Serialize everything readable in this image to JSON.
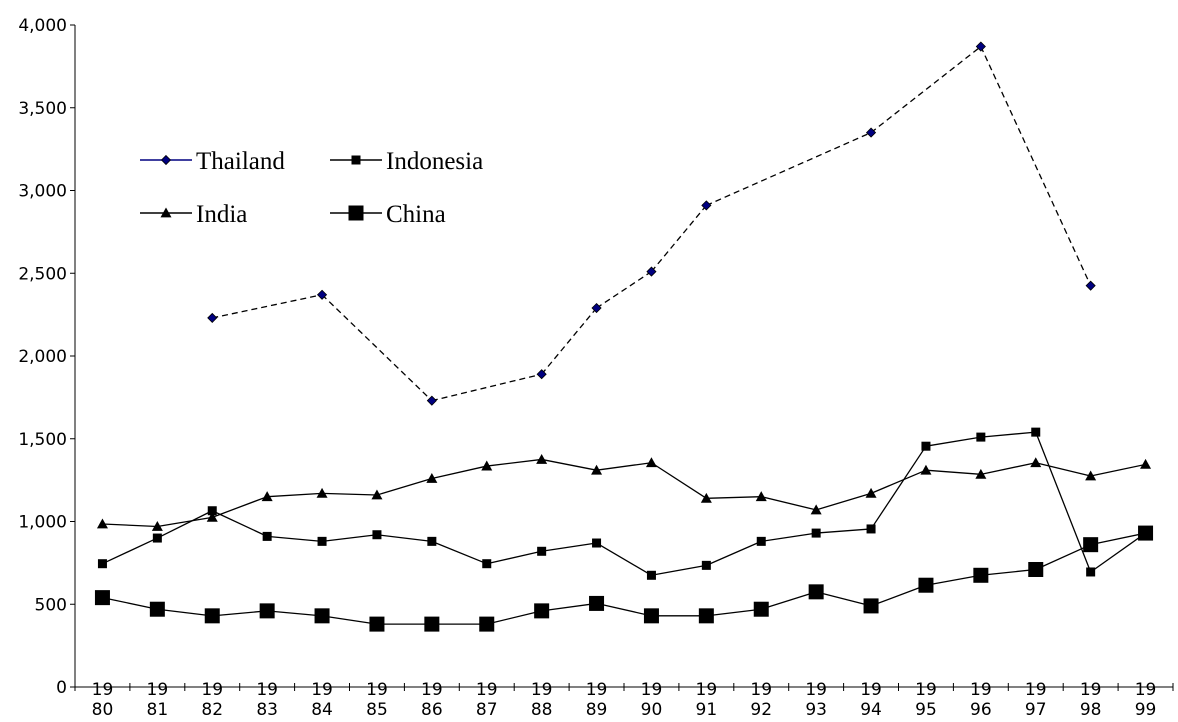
{
  "chart_data": {
    "type": "line",
    "title": "",
    "xlabel": "",
    "ylabel": "",
    "categories": [
      "19\n80",
      "19\n81",
      "19\n82",
      "19\n83",
      "19\n84",
      "19\n85",
      "19\n86",
      "19\n87",
      "19\n88",
      "19\n89",
      "19\n90",
      "19\n91",
      "19\n92",
      "19\n93",
      "19\n94",
      "19\n95",
      "19\n96",
      "19\n97",
      "19\n98",
      "19\n99"
    ],
    "ylim": [
      0,
      4000
    ],
    "yticks": [
      "0",
      "500",
      "1,000",
      "1,500",
      "2,000",
      "2,500",
      "3,000",
      "3,500",
      "4,000"
    ],
    "grid": false,
    "legend_position": "top-left",
    "series": [
      {
        "name": "Thailand",
        "color": "#000080",
        "marker": "diamond",
        "values": [
          null,
          null,
          2230,
          null,
          2370,
          null,
          1730,
          null,
          1890,
          2290,
          2510,
          2910,
          null,
          null,
          3350,
          null,
          3870,
          null,
          2425,
          null
        ]
      },
      {
        "name": "Indonesia",
        "color": "#000000",
        "marker": "square-small",
        "values": [
          745,
          900,
          1065,
          910,
          880,
          920,
          880,
          745,
          820,
          870,
          675,
          735,
          880,
          930,
          955,
          1455,
          1510,
          1540,
          695,
          930
        ]
      },
      {
        "name": "India",
        "color": "#000000",
        "marker": "triangle",
        "values": [
          985,
          970,
          1025,
          1150,
          1170,
          1160,
          1260,
          1335,
          1375,
          1310,
          1355,
          1140,
          1150,
          1070,
          1170,
          1310,
          1285,
          1355,
          1275,
          1345
        ]
      },
      {
        "name": "China",
        "color": "#000000",
        "marker": "square-large",
        "values": [
          540,
          470,
          430,
          460,
          430,
          380,
          380,
          380,
          460,
          505,
          430,
          430,
          470,
          575,
          490,
          615,
          675,
          710,
          860,
          930
        ]
      }
    ]
  }
}
